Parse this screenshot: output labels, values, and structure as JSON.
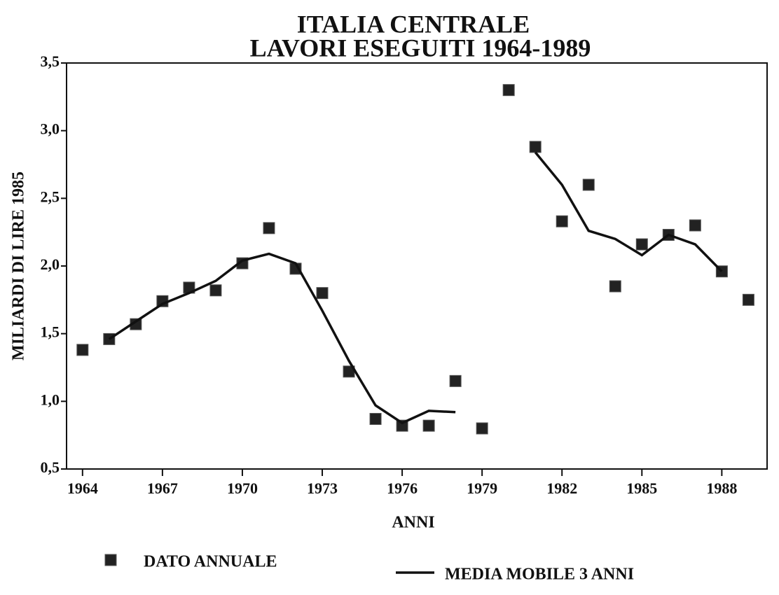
{
  "chart_data": {
    "type": "line",
    "title": "ITALIA CENTRALE",
    "subtitle": "LAVORI ESEGUITI 1964-1989",
    "x_label": "ANNI",
    "y_label": "MILIARDI DI LIRE 1985",
    "x": [
      1964,
      1965,
      1966,
      1967,
      1968,
      1969,
      1970,
      1971,
      1972,
      1973,
      1974,
      1975,
      1976,
      1977,
      1978,
      1979,
      1980,
      1981,
      1982,
      1983,
      1984,
      1985,
      1986,
      1987,
      1988,
      1989
    ],
    "series": [
      {
        "name": "DATO ANNUALE",
        "color": "#222222",
        "style": "marker",
        "values": [
          1.38,
          1.46,
          1.57,
          1.74,
          1.84,
          1.82,
          2.02,
          2.28,
          1.98,
          1.8,
          1.22,
          0.87,
          0.82,
          0.82,
          1.15,
          0.8,
          3.3,
          2.88,
          2.33,
          2.6,
          1.85,
          2.16,
          2.23,
          2.3,
          1.96,
          1.75
        ]
      },
      {
        "name": "MEDIA MOBILE 3 ANNI",
        "color": "#111111",
        "style": "line",
        "values": [
          null,
          1.46,
          1.59,
          1.72,
          1.8,
          1.89,
          2.04,
          2.09,
          2.02,
          1.67,
          1.3,
          0.97,
          0.84,
          0.93,
          0.92,
          null,
          null,
          2.84,
          2.6,
          2.26,
          2.2,
          2.08,
          2.23,
          2.16,
          1.96,
          null
        ]
      }
    ],
    "xlim": [
      1963.4,
      1989.7
    ],
    "xticks": [
      1964,
      1967,
      1970,
      1973,
      1976,
      1979,
      1982,
      1985,
      1988
    ],
    "ylim": [
      0.5,
      3.5
    ],
    "yticks": [
      {
        "value": 0.5,
        "label": "0,5"
      },
      {
        "value": 1.0,
        "label": "1,0"
      },
      {
        "value": 1.5,
        "label": "1,5"
      },
      {
        "value": 2.0,
        "label": "2,0"
      },
      {
        "value": 2.5,
        "label": "2,5"
      },
      {
        "value": 3.0,
        "label": "3,0"
      },
      {
        "value": 3.5,
        "label": "3,5"
      }
    ],
    "grid": false,
    "legend": "bottom"
  }
}
